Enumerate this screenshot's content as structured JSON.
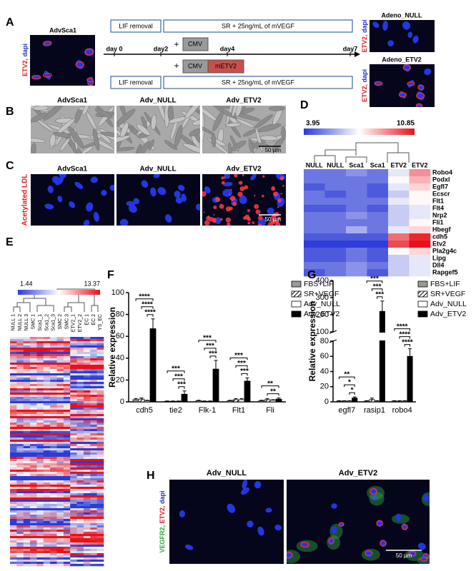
{
  "panels": {
    "A": {
      "label": "A",
      "left_image": {
        "title": "AdvSca1",
        "stain": [
          "ETV2,",
          "dapi"
        ]
      },
      "timeline": {
        "top_boxes": [
          "LIF removal",
          "SR + 25ng/mL of mVEGF"
        ],
        "bottom_boxes": [
          "LIF removal",
          "SR + 25ng/mL of mVEGF"
        ],
        "control": {
          "plus": "+",
          "vector": "CMV"
        },
        "treatment": {
          "plus": "+",
          "vector": "CMV",
          "insert": "mETV2"
        },
        "days": [
          "day 0",
          "day2",
          "day4",
          "day7"
        ]
      },
      "right_images": [
        {
          "title": "Adeno_NULL",
          "stain": [
            "ETV2,",
            "dapi"
          ]
        },
        {
          "title": "Adeno_ETV2",
          "stain": [
            "ETV2,",
            "dapi"
          ]
        }
      ]
    },
    "B": {
      "label": "B",
      "titles": [
        "AdvSca1",
        "Adv_NULL",
        "Adv_ETV2"
      ],
      "scale_bar": "50 µm"
    },
    "C": {
      "label": "C",
      "stain": "Acetylated LDL",
      "titles": [
        "AdvSca1",
        "Adv_NULL",
        "Adv_ETV2"
      ],
      "scale_bar": "50 µm"
    },
    "D": {
      "label": "D",
      "colorbar": {
        "min": 3.95,
        "max": 10.85
      },
      "columns": [
        "NULL",
        "NULL",
        "Sca1",
        "Sca1",
        "ETV2",
        "ETV2"
      ],
      "genes": [
        "Robo4",
        "Podxl",
        "Egfl7",
        "Ecscr",
        "Flt1",
        "Flt4",
        "Nrp2",
        "Fli1",
        "Hbegf",
        "cdh5",
        "Etv2",
        "Pla2g4c",
        "Lipg",
        "Dll4",
        "Rapgef5"
      ],
      "values": [
        [
          5,
          5,
          5.5,
          5,
          7,
          9
        ],
        [
          5,
          5,
          5,
          5,
          7.5,
          8.5
        ],
        [
          4.5,
          5,
          5,
          4.5,
          7,
          8
        ],
        [
          5,
          4.5,
          5,
          4.5,
          6.5,
          7.5
        ],
        [
          5,
          5,
          5,
          5,
          7,
          7.5
        ],
        [
          4.5,
          4.5,
          5,
          4.5,
          6.5,
          7
        ],
        [
          5,
          5,
          5.5,
          5,
          6.5,
          7
        ],
        [
          5,
          5,
          5,
          5,
          6.5,
          7.5
        ],
        [
          5,
          5,
          6,
          5,
          7,
          8
        ],
        [
          4.5,
          4.5,
          4.5,
          4.5,
          9.5,
          10.5
        ],
        [
          4,
          4,
          4,
          4,
          10,
          10.85
        ],
        [
          4.5,
          4.5,
          5,
          4.5,
          7.5,
          8
        ],
        [
          4.5,
          4.5,
          5,
          4.5,
          6.5,
          7
        ],
        [
          5,
          5,
          5.5,
          5,
          6.5,
          7
        ],
        [
          4.5,
          5,
          5.5,
          4.5,
          6.5,
          7
        ]
      ]
    },
    "E": {
      "label": "E",
      "colorbar": {
        "min": 1.44,
        "max": 13.37
      },
      "columns": [
        "NULL 1",
        "NULL 2",
        "NULL 3",
        "SMC 1",
        "Sca1_1",
        "Sca1_2",
        "Sca1_3",
        "SMC 2",
        "SMC 3",
        "ETV2_1",
        "ETV2_2",
        "EC 1",
        "EC 2",
        "YS_EC"
      ]
    },
    "F": {
      "label": "F"
    },
    "G": {
      "label": "G"
    },
    "H": {
      "label": "H",
      "titles": [
        "Adv_NULL",
        "Adv_ETV2"
      ],
      "stain": [
        "VEGFR2,",
        "ETV2,",
        "dapi"
      ],
      "scale_bar": "50 µm"
    }
  },
  "chart_data": [
    {
      "type": "bar",
      "ylabel": "Relative expression",
      "categories": [
        "cdh5",
        "tie2",
        "Flk-1",
        "Flt1",
        "Fli"
      ],
      "ylim": [
        0,
        100
      ],
      "yticks": [
        0,
        20,
        40,
        60,
        80,
        100
      ],
      "series": [
        {
          "name": "FBS+LIF",
          "color": "#999999",
          "values": [
            2,
            0.5,
            1,
            1,
            1
          ],
          "errors": [
            1,
            0.3,
            0.5,
            0.5,
            0.5
          ]
        },
        {
          "name": "SR+VEGF",
          "color": "#000000",
          "pattern": "hatch",
          "values": [
            2.5,
            0.5,
            0.5,
            2,
            2
          ],
          "errors": [
            1,
            0.3,
            0.3,
            1,
            1
          ]
        },
        {
          "name": "Adv_NULL",
          "color": "#ffffff",
          "values": [
            1,
            0.5,
            0.5,
            2,
            1.5
          ],
          "errors": [
            0.5,
            0.3,
            0.3,
            1,
            0.5
          ]
        },
        {
          "name": "Adv_ETV2",
          "color": "#000000",
          "values": [
            67,
            7,
            30,
            19,
            2.5
          ],
          "errors": [
            9,
            3,
            8,
            3,
            1
          ]
        }
      ],
      "significance": [
        [
          "****",
          "****",
          "****"
        ],
        [
          "***",
          "***",
          "***"
        ],
        [
          "***",
          "***",
          "***"
        ],
        [
          "***",
          "***",
          "***"
        ],
        [
          "**",
          "**"
        ]
      ]
    },
    {
      "type": "bar",
      "ylabel": "Relative expression",
      "categories": [
        "egfl7",
        "rasip1",
        "robo4"
      ],
      "ylim": [
        0,
        400
      ],
      "axis_break": [
        80,
        100
      ],
      "yticks": [
        0,
        20,
        40,
        60,
        80,
        100,
        200,
        300,
        400
      ],
      "series": [
        {
          "name": "FBS+LIF",
          "color": "#999999",
          "values": [
            1,
            1,
            1
          ],
          "errors": [
            0.5,
            0.5,
            0.5
          ]
        },
        {
          "name": "SR+VEGF",
          "color": "#000000",
          "pattern": "hatch",
          "values": [
            1,
            3,
            1
          ],
          "errors": [
            0.5,
            2,
            0.5
          ]
        },
        {
          "name": "Adv_NULL",
          "color": "#ffffff",
          "values": [
            1,
            1,
            1
          ],
          "errors": [
            0.5,
            0.5,
            0.5
          ]
        },
        {
          "name": "Adv_ETV2",
          "color": "#000000",
          "values": [
            5,
            220,
            60
          ],
          "errors": [
            1.5,
            60,
            10
          ]
        }
      ],
      "significance": [
        [
          "**",
          "*",
          "*"
        ],
        [
          "***",
          "***",
          "***"
        ],
        [
          "****",
          "****",
          "****"
        ]
      ]
    }
  ]
}
